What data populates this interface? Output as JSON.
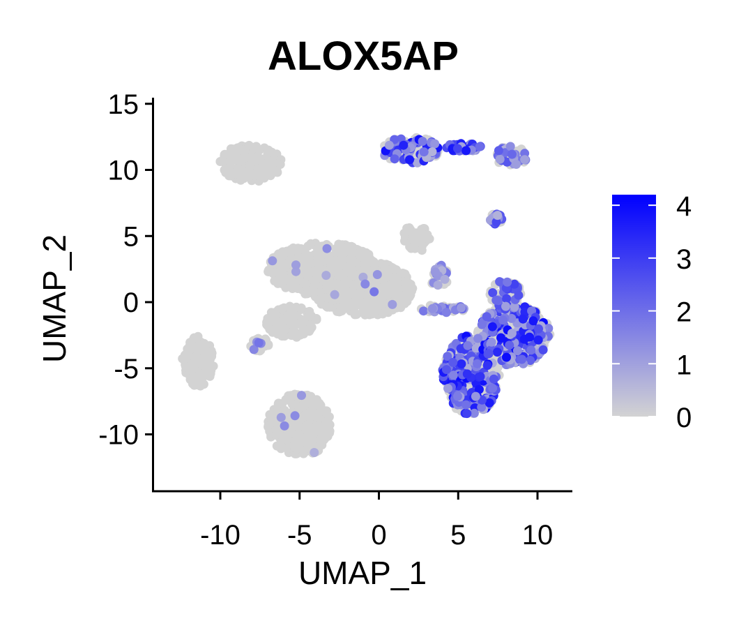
{
  "chart_data": {
    "type": "scatter",
    "title": "ALOX5AP",
    "xlabel": "UMAP_1",
    "ylabel": "UMAP_2",
    "xlim": [
      -14.2,
      12.2
    ],
    "ylim": [
      -14.2,
      15.3
    ],
    "x_ticks": [
      -10,
      -5,
      0,
      5,
      10
    ],
    "y_ticks": [
      -10,
      -5,
      0,
      5,
      10,
      15
    ],
    "grid": false,
    "point_color_low": "#d3d3d3",
    "point_color_high": "#0000ff",
    "colorbar": {
      "placement": "right",
      "range": [
        0,
        4.2
      ],
      "ticks": [
        0,
        1,
        2,
        3,
        4
      ]
    },
    "clusters": [
      {
        "cx": -8.1,
        "cy": 10.5,
        "rx": 2.0,
        "ry": 1.4,
        "expr_frac": 0.0,
        "expr_max": 0.0
      },
      {
        "cx": -11.4,
        "cy": -4.5,
        "rx": 1.0,
        "ry": 1.9,
        "expr_frac": 0.0,
        "expr_max": 0.0
      },
      {
        "cx": -5.0,
        "cy": -9.3,
        "rx": 2.0,
        "ry": 2.4,
        "expr_frac": 0.01,
        "expr_max": 1.5
      },
      {
        "cx": -3.5,
        "cy": 2.5,
        "rx": 3.5,
        "ry": 2.0,
        "expr_frac": 0.01,
        "expr_max": 1.5
      },
      {
        "cx": -1.0,
        "cy": 1.0,
        "rx": 3.2,
        "ry": 2.1,
        "expr_frac": 0.01,
        "expr_max": 2.5
      },
      {
        "cx": -5.5,
        "cy": -1.5,
        "rx": 1.6,
        "ry": 1.2,
        "expr_frac": 0.0,
        "expr_max": 0.0
      },
      {
        "cx": -7.5,
        "cy": -3.2,
        "rx": 0.6,
        "ry": 0.5,
        "expr_frac": 0.1,
        "expr_max": 2.0
      },
      {
        "cx": 2.3,
        "cy": 4.8,
        "rx": 0.9,
        "ry": 1.0,
        "expr_frac": 0.0,
        "expr_max": 0.0
      },
      {
        "cx": 2.0,
        "cy": 11.5,
        "rx": 1.8,
        "ry": 1.0,
        "expr_frac": 0.45,
        "expr_max": 4.0
      },
      {
        "cx": 5.3,
        "cy": 11.7,
        "rx": 1.2,
        "ry": 0.3,
        "expr_frac": 0.85,
        "expr_max": 3.8
      },
      {
        "cx": 8.3,
        "cy": 11.0,
        "rx": 1.0,
        "ry": 0.8,
        "expr_frac": 0.4,
        "expr_max": 2.5
      },
      {
        "cx": 7.4,
        "cy": 6.3,
        "rx": 0.4,
        "ry": 0.4,
        "expr_frac": 0.6,
        "expr_max": 3.0
      },
      {
        "cx": 3.8,
        "cy": 2.0,
        "rx": 0.7,
        "ry": 0.8,
        "expr_frac": 0.4,
        "expr_max": 2.0
      },
      {
        "cx": 4.0,
        "cy": -0.5,
        "rx": 1.5,
        "ry": 0.3,
        "expr_frac": 0.5,
        "expr_max": 2.5
      },
      {
        "cx": 5.8,
        "cy": -5.5,
        "rx": 1.8,
        "ry": 3.0,
        "expr_frac": 0.45,
        "expr_max": 4.0
      },
      {
        "cx": 8.5,
        "cy": -2.5,
        "rx": 2.3,
        "ry": 2.3,
        "expr_frac": 0.45,
        "expr_max": 4.0
      },
      {
        "cx": 8.0,
        "cy": 0.5,
        "rx": 1.0,
        "ry": 1.2,
        "expr_frac": 0.3,
        "expr_max": 3.0
      }
    ]
  }
}
